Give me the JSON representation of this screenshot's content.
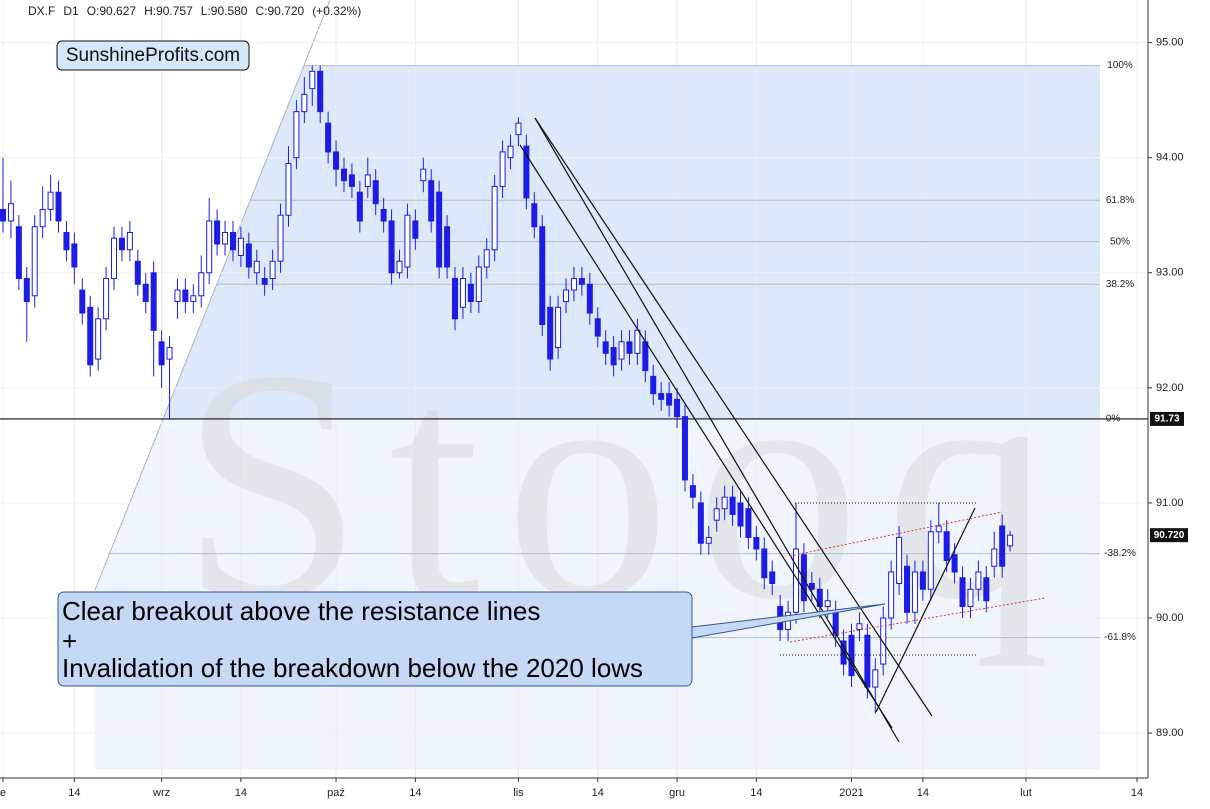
{
  "chart_data": {
    "type": "candlestick",
    "title_items": [
      "DX.F",
      "D1",
      "O:90.627",
      "H:90.757",
      "L:90.580",
      "C:90.720",
      "(+0.32%)"
    ],
    "logo": "SunshineProfits.com",
    "watermark": "Stooq",
    "annotation": [
      "Clear breakout above the resistance lines",
      "+",
      "Invalidation of the breakdown below the 2020 lows"
    ],
    "categories": [
      "e",
      null,
      null,
      null,
      null,
      null,
      null,
      null,
      null,
      "14",
      null,
      null,
      null,
      null,
      null,
      null,
      null,
      null,
      null,
      null,
      "wrz",
      null,
      null,
      null,
      null,
      null,
      null,
      null,
      null,
      null,
      "14",
      null,
      null,
      null,
      null,
      null,
      null,
      null,
      null,
      null,
      null,
      null,
      "paź",
      null,
      null,
      null,
      null,
      null,
      null,
      null,
      null,
      null,
      "14",
      null,
      null,
      null,
      null,
      null,
      null,
      null,
      null,
      null,
      null,
      null,
      null,
      "lis",
      null,
      null,
      null,
      null,
      null,
      null,
      null,
      null,
      null,
      "14",
      null,
      null,
      null,
      null,
      null,
      null,
      null,
      null,
      null,
      "gru",
      null,
      null,
      null,
      null,
      null,
      null,
      null,
      null,
      null,
      "14",
      null,
      null,
      null,
      null,
      null,
      null,
      null,
      null,
      null,
      null,
      null,
      "2021",
      null,
      null,
      null,
      null,
      null,
      null,
      null,
      null,
      "14",
      null,
      null,
      null,
      null,
      null,
      null,
      null,
      null,
      null,
      null,
      null,
      null,
      "lut",
      null,
      null,
      null,
      null,
      null,
      null,
      null,
      null,
      null,
      null,
      null,
      null,
      null,
      "14"
    ],
    "open": [
      93.55,
      93.45,
      93.4,
      92.95,
      92.8,
      93.4,
      93.55,
      93.7,
      93.35,
      93.25,
      92.85,
      92.7,
      92.25,
      92.6,
      92.95,
      93.3,
      93.2,
      93.1,
      92.9,
      93.0,
      92.4,
      92.25,
      92.75,
      92.85,
      92.75,
      92.8,
      93.0,
      93.45,
      93.25,
      93.35,
      93.15,
      93.25,
      93.0,
      92.95,
      92.95,
      93.1,
      93.5,
      94.0,
      94.4,
      94.6,
      94.75,
      94.3,
      94.05,
      93.9,
      93.85,
      93.7,
      93.75,
      93.8,
      93.55,
      93.45,
      93.0,
      93.05,
      93.45,
      93.8,
      93.8,
      93.7,
      93.4,
      92.95,
      92.7,
      92.9,
      92.75,
      93.05,
      93.2,
      93.75,
      94.0,
      94.2,
      94.1,
      93.6,
      93.4,
      92.7,
      92.35,
      92.75,
      92.85,
      92.95,
      92.9,
      92.6,
      92.4,
      92.35,
      92.25,
      92.4,
      92.3,
      92.4,
      92.1,
      91.95,
      91.95,
      91.9,
      91.75,
      91.15,
      91.0,
      90.65,
      90.85,
      90.95,
      91.05,
      91.0,
      90.95,
      90.7,
      90.6,
      90.4,
      90.1,
      89.9,
      90.05,
      90.55,
      90.3,
      90.25,
      90.1,
      90.05,
      89.8,
      89.85,
      89.9,
      89.85,
      89.4,
      89.6,
      90.0,
      90.3,
      90.45,
      90.05,
      90.4,
      90.25,
      90.75,
      90.75,
      90.55,
      90.35,
      90.1,
      90.25,
      90.35,
      90.45,
      90.8,
      90.627,
      null,
      null,
      null,
      null,
      null,
      null,
      null,
      null,
      null,
      null,
      null,
      null,
      null,
      null,
      null,
      null
    ],
    "high": [
      94.0,
      93.8,
      93.5,
      93.05,
      93.5,
      93.75,
      93.85,
      93.8,
      93.45,
      93.35,
      92.95,
      92.8,
      92.7,
      93.05,
      93.4,
      93.4,
      93.45,
      93.2,
      93.0,
      93.1,
      92.5,
      92.45,
      92.95,
      92.95,
      92.9,
      93.15,
      93.65,
      93.55,
      93.45,
      93.45,
      93.4,
      93.35,
      93.2,
      93.05,
      93.2,
      93.6,
      94.1,
      94.5,
      94.7,
      94.8,
      94.8,
      94.4,
      94.15,
      94.0,
      93.95,
      93.8,
      94.0,
      93.9,
      93.65,
      93.55,
      93.2,
      93.6,
      93.55,
      94.0,
      93.9,
      93.8,
      93.5,
      93.05,
      93.05,
      93.0,
      93.15,
      93.3,
      93.85,
      94.15,
      94.2,
      94.35,
      94.2,
      93.7,
      93.5,
      92.8,
      92.8,
      92.95,
      93.05,
      93.05,
      93.0,
      92.7,
      92.5,
      92.45,
      92.5,
      92.5,
      92.6,
      92.5,
      92.2,
      92.05,
      92.05,
      92.0,
      91.85,
      91.25,
      91.1,
      90.8,
      91.05,
      91.15,
      91.15,
      91.1,
      91.05,
      90.8,
      90.7,
      90.5,
      90.2,
      90.15,
      91.0,
      90.65,
      90.4,
      90.35,
      90.25,
      90.15,
      89.9,
      89.95,
      90.05,
      89.95,
      89.65,
      90.1,
      90.5,
      90.8,
      90.55,
      90.5,
      90.5,
      90.85,
      91.0,
      90.85,
      90.65,
      90.45,
      90.35,
      90.5,
      90.45,
      90.75,
      90.9,
      90.757,
      null,
      null,
      null,
      null,
      null,
      null,
      null,
      null,
      null,
      null,
      null,
      null,
      null,
      null,
      null,
      null
    ],
    "low": [
      93.35,
      93.3,
      92.85,
      92.4,
      92.7,
      93.3,
      93.45,
      93.35,
      93.1,
      92.9,
      92.55,
      92.1,
      92.15,
      92.5,
      92.85,
      93.1,
      93.1,
      92.8,
      92.65,
      92.1,
      92.0,
      91.73,
      92.6,
      92.65,
      92.65,
      92.7,
      92.9,
      93.15,
      93.15,
      93.1,
      93.05,
      92.95,
      92.9,
      92.8,
      92.85,
      93.0,
      93.4,
      93.9,
      94.3,
      94.45,
      94.3,
      93.95,
      93.75,
      93.7,
      93.65,
      93.35,
      93.65,
      93.5,
      93.35,
      92.9,
      92.95,
      92.95,
      93.2,
      93.7,
      93.35,
      92.95,
      92.95,
      92.5,
      92.6,
      92.65,
      92.65,
      92.95,
      93.1,
      93.65,
      93.9,
      94.1,
      93.55,
      93.3,
      92.45,
      92.15,
      92.25,
      92.65,
      92.75,
      92.8,
      92.55,
      92.35,
      92.2,
      92.1,
      92.15,
      92.2,
      92.2,
      92.05,
      91.85,
      91.8,
      91.75,
      91.65,
      91.1,
      90.95,
      90.55,
      90.55,
      90.75,
      90.85,
      90.8,
      90.7,
      90.6,
      90.5,
      90.25,
      90.2,
      89.8,
      89.8,
      89.95,
      90.05,
      90.15,
      90.0,
      90.0,
      89.75,
      89.5,
      89.4,
      89.8,
      89.3,
      89.17,
      89.5,
      89.9,
      90.2,
      89.95,
      89.95,
      90.15,
      90.15,
      90.65,
      90.4,
      90.3,
      90.0,
      90.0,
      90.15,
      90.05,
      90.35,
      90.35,
      90.58,
      null,
      null,
      null,
      null,
      null,
      null,
      null,
      null,
      null,
      null,
      null,
      null,
      null,
      null,
      null,
      null
    ],
    "close": [
      93.45,
      93.6,
      92.95,
      92.75,
      93.4,
      93.55,
      93.7,
      93.45,
      93.2,
      93.05,
      92.65,
      92.2,
      92.6,
      92.95,
      93.3,
      93.2,
      93.35,
      92.9,
      92.75,
      92.5,
      92.2,
      92.35,
      92.85,
      92.75,
      92.8,
      93.0,
      93.45,
      93.25,
      93.35,
      93.2,
      93.3,
      93.05,
      93.1,
      92.9,
      93.1,
      93.5,
      93.95,
      94.4,
      94.55,
      94.75,
      94.4,
      94.05,
      93.9,
      93.8,
      93.75,
      93.45,
      93.85,
      93.6,
      93.45,
      93.0,
      93.1,
      93.5,
      93.3,
      93.9,
      93.45,
      93.05,
      93.05,
      92.6,
      92.95,
      92.75,
      93.05,
      93.2,
      93.75,
      94.05,
      94.1,
      94.3,
      93.65,
      93.4,
      92.55,
      92.25,
      92.7,
      92.85,
      92.95,
      92.9,
      92.65,
      92.45,
      92.3,
      92.2,
      92.4,
      92.3,
      92.5,
      92.15,
      91.95,
      91.9,
      91.85,
      91.75,
      91.2,
      91.05,
      90.65,
      90.7,
      90.95,
      91.05,
      90.9,
      90.8,
      90.7,
      90.6,
      90.35,
      90.3,
      89.9,
      90.05,
      90.6,
      90.15,
      90.25,
      90.1,
      90.15,
      89.85,
      89.6,
      89.5,
      89.95,
      89.4,
      89.55,
      90.0,
      90.4,
      90.7,
      90.05,
      90.4,
      90.25,
      90.75,
      90.8,
      90.5,
      90.4,
      90.1,
      90.25,
      90.4,
      90.15,
      90.6,
      90.45,
      90.72,
      null,
      null,
      null,
      null,
      null,
      null,
      null,
      null,
      null,
      null,
      null,
      null,
      null,
      null,
      null,
      null
    ],
    "up_color": "#ffffff",
    "down_color": "#1c1ce6",
    "ylim": [
      88.61,
      95.37
    ],
    "yticks": [
      {
        "value": 89,
        "label": "89.00"
      },
      {
        "value": 90,
        "label": "90.00"
      },
      {
        "value": 91,
        "label": "91.00"
      },
      {
        "value": 92,
        "label": "92.00"
      },
      {
        "value": 93,
        "label": "93.00"
      },
      {
        "value": 94,
        "label": "94.00"
      },
      {
        "value": 95,
        "label": "95.00"
      }
    ],
    "fib_levels": [
      {
        "value": 94.8,
        "label": "100%"
      },
      {
        "value": 93.63,
        "label": "61.8%"
      },
      {
        "value": 93.27,
        "label": "50%"
      },
      {
        "value": 92.9,
        "label": "38.2%"
      },
      91.73,
      {
        "value": 90.56,
        "label": "-38.2%"
      },
      {
        "value": 89.83,
        "label": "-61.8%"
      }
    ],
    "fib_base_label": "0%",
    "last_price": {
      "value": 90.72,
      "label": "90.720"
    },
    "grid": true
  }
}
